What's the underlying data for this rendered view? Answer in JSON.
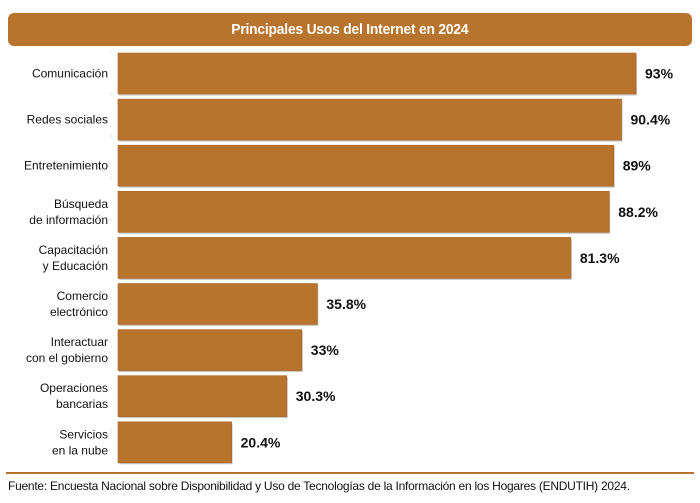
{
  "chart_data": {
    "type": "bar",
    "orientation": "horizontal",
    "title": "Principales Usos del Internet en 2024",
    "xlabel": "",
    "ylabel": "",
    "xlim": [
      0,
      100
    ],
    "grid": false,
    "legend": "none",
    "bar_color": "#b8732d",
    "categories": [
      [
        "Comunicación"
      ],
      [
        "Redes sociales"
      ],
      [
        "Entretenimiento"
      ],
      [
        "Búsqueda",
        "de información"
      ],
      [
        "Capacitación",
        "y Educación"
      ],
      [
        "Comercio",
        "electrónico"
      ],
      [
        "Interactuar",
        "con el gobierno"
      ],
      [
        "Operaciones",
        "bancarias"
      ],
      [
        "Servicios",
        "en la nube"
      ]
    ],
    "values": [
      93,
      90.4,
      89,
      88.2,
      81.3,
      35.8,
      33,
      30.3,
      20.4
    ],
    "value_labels": [
      "93%",
      "90.4%",
      "89%",
      "88.2%",
      "81.3%",
      "35.8%",
      "33%",
      "30.3%",
      "20.4%"
    ]
  },
  "header": {
    "title": "Principales Usos del Internet en 2024"
  },
  "footer": {
    "source": "Fuente: Encuesta Nacional sobre Disponibilidad y Uso de Tecnologías de la Información en los Hogares (ENDUTIH) 2024."
  },
  "colors": {
    "accent": "#b8732d",
    "text": "#111111"
  }
}
